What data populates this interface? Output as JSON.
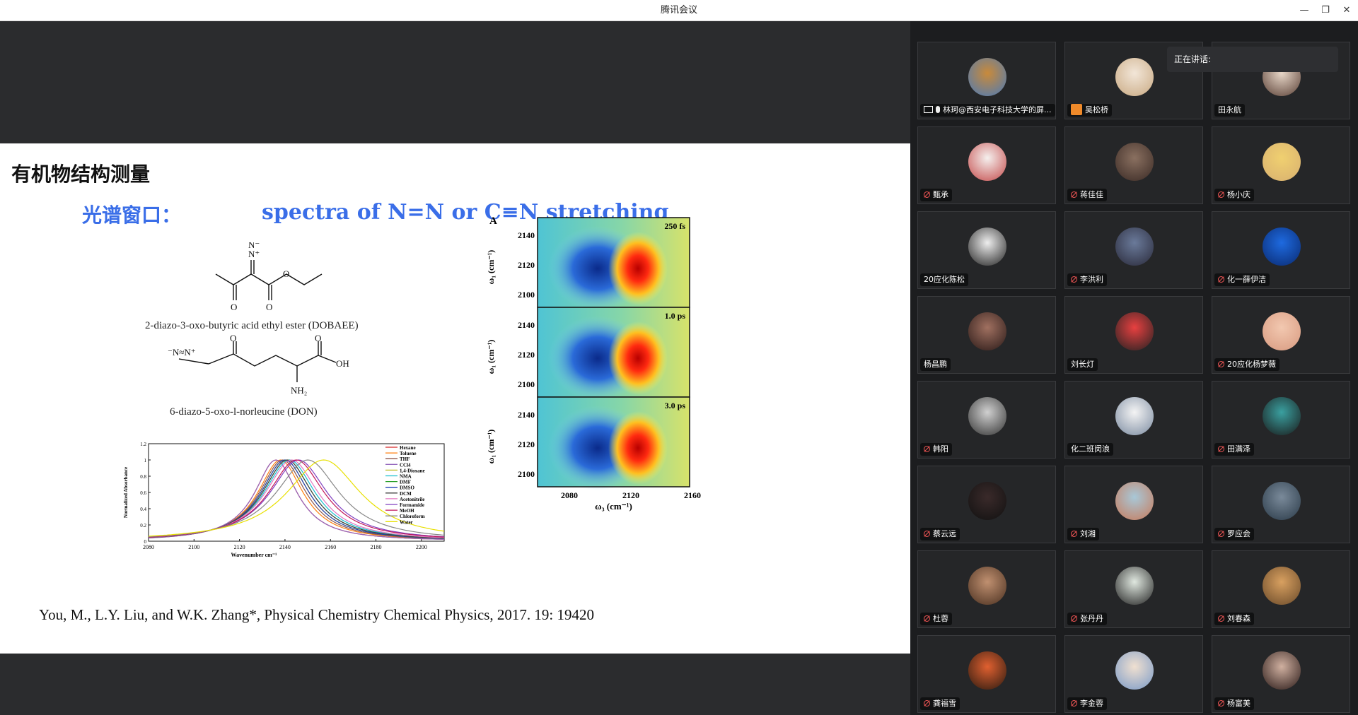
{
  "window": {
    "title": "腾讯会议",
    "minimize": "—",
    "restore": "❐",
    "close": "✕"
  },
  "slide": {
    "title": "有机物结构测量",
    "subtitle_cn": "光谱窗口：",
    "subtitle_en": "spectra of N=N or C≡N stretching",
    "molecule1_caption": "2-diazo-3-oxo-butyric acid ethyl ester (DOBAEE)",
    "molecule2_caption": "6-diazo-5-oxo-l-norleucine (DON)",
    "citation": "You, M., L.Y. Liu, and W.K. Zhang*, Physical Chemistry Chemical Physics, 2017. 19: 19420",
    "spectrum_chart": {
      "type": "line",
      "xlabel": "Wavenumber cm⁻¹",
      "ylabel": "Normalized Absorbance",
      "x_ticks": [
        "2080",
        "2100",
        "2120",
        "2140",
        "2160",
        "2180",
        "2200"
      ],
      "y_ticks": [
        "0",
        "0.2",
        "0.4",
        "0.6",
        "0.8",
        "1",
        "1.2"
      ],
      "legend": [
        "Hexane",
        "Toluene",
        "THF",
        "CCl4",
        "1,4-Dioxane",
        "NMA",
        "DMF",
        "DMSO",
        "DCM",
        "Acetonitrile",
        "Formamide",
        "MeOH",
        "Chloroform",
        "Water"
      ]
    },
    "contour_chart": {
      "type": "heatmap",
      "panel_letter": "A",
      "panels": [
        "250 fs",
        "1.0 ps",
        "3.0 ps"
      ],
      "ylabel": "ω₁ (cm⁻¹)",
      "xlabel": "ω₃ (cm⁻¹)",
      "y_ticks": [
        "2140",
        "2120",
        "2100"
      ],
      "x_ticks": [
        "2080",
        "2120",
        "2160"
      ]
    }
  },
  "chart_data": [
    {
      "type": "line",
      "title": "",
      "xlabel": "Wavenumber cm⁻¹",
      "ylabel": "Normalized Absorbance",
      "xlim": [
        2080,
        2210
      ],
      "ylim": [
        0,
        1.2
      ],
      "series": [
        {
          "name": "Hexane",
          "peak": 2136,
          "color": "#d62728"
        },
        {
          "name": "Toluene",
          "peak": 2138,
          "color": "#ff7f0e"
        },
        {
          "name": "THF",
          "peak": 2139,
          "color": "#8c564b"
        },
        {
          "name": "CCl4",
          "peak": 2136,
          "color": "#9467bd"
        },
        {
          "name": "1,4-Dioxane",
          "peak": 2140,
          "color": "#bcbd22"
        },
        {
          "name": "NMA",
          "peak": 2142,
          "color": "#17becf"
        },
        {
          "name": "DMF",
          "peak": 2141,
          "color": "#2ca02c"
        },
        {
          "name": "DMSO",
          "peak": 2140,
          "color": "#1f3fb4"
        },
        {
          "name": "DCM",
          "peak": 2141,
          "color": "#444444"
        },
        {
          "name": "Acetonitrile",
          "peak": 2143,
          "color": "#e377c2"
        },
        {
          "name": "Formamide",
          "peak": 2146,
          "color": "#7f3fbf"
        },
        {
          "name": "MeOH",
          "peak": 2145,
          "color": "#c2185b"
        },
        {
          "name": "Chloroform",
          "peak": 2150,
          "color": "#888888"
        },
        {
          "name": "Water",
          "peak": 2157,
          "color": "#e8e000"
        }
      ]
    },
    {
      "type": "heatmap",
      "panels": [
        "250 fs",
        "1.0 ps",
        "3.0 ps"
      ],
      "xlabel": "ω₃ (cm⁻¹)",
      "ylabel": "ω₁ (cm⁻¹)",
      "xlim": [
        2060,
        2165
      ],
      "ylim": [
        2090,
        2150
      ]
    }
  ],
  "speaking": {
    "label": "正在讲话:"
  },
  "participants": [
    {
      "name": "林珂@西安电子科技大学的屏...",
      "status": "sharing",
      "av1": "#c98a3a",
      "av2": "#4a7ab8"
    },
    {
      "name": "吴松桥",
      "status": "host",
      "av1": "#f2e6d8",
      "av2": "#c9a982"
    },
    {
      "name": "田永航",
      "status": "none",
      "av1": "#e8d7c8",
      "av2": "#5a4036"
    },
    {
      "name": "甄承",
      "status": "muted",
      "av1": "#f5f0ee",
      "av2": "#c44a4a"
    },
    {
      "name": "蒋佳佳",
      "status": "muted",
      "av1": "#8a7060",
      "av2": "#3a2a25"
    },
    {
      "name": "杨小庆",
      "status": "muted",
      "av1": "#f0d070",
      "av2": "#d8b070"
    },
    {
      "name": "20应化陈松",
      "status": "none",
      "av1": "#eeeeee",
      "av2": "#222222"
    },
    {
      "name": "李洪利",
      "status": "muted",
      "av1": "#6a7a9a",
      "av2": "#2a2a3a"
    },
    {
      "name": "化一薛伊洁",
      "status": "muted",
      "av1": "#1e6ae0",
      "av2": "#0a2a70"
    },
    {
      "name": "杨昌鹏",
      "status": "none",
      "av1": "#a07060",
      "av2": "#2a1a18"
    },
    {
      "name": "刘长灯",
      "status": "none",
      "av1": "#e84040",
      "av2": "#222222"
    },
    {
      "name": "20应化杨梦薇",
      "status": "muted",
      "av1": "#f2c8b0",
      "av2": "#d89a80"
    },
    {
      "name": "韩阳",
      "status": "muted",
      "av1": "#d0d0d0",
      "av2": "#333333"
    },
    {
      "name": "化二班闵浪",
      "status": "none",
      "av1": "#f4f4f4",
      "av2": "#7a8aa0"
    },
    {
      "name": "田满泽",
      "status": "muted",
      "av1": "#3aa0a0",
      "av2": "#1a1a1a"
    },
    {
      "name": "蔡云远",
      "status": "muted",
      "av1": "#3a2a2a",
      "av2": "#111111"
    },
    {
      "name": "刘湘",
      "status": "muted",
      "av1": "#a8c8d8",
      "av2": "#c87a5a"
    },
    {
      "name": "罗应会",
      "status": "muted",
      "av1": "#7a8a9a",
      "av2": "#2a3a48"
    },
    {
      "name": "杜蓉",
      "status": "muted",
      "av1": "#c09070",
      "av2": "#4a3020"
    },
    {
      "name": "张丹丹",
      "status": "muted",
      "av1": "#e0e8e0",
      "av2": "#222222"
    },
    {
      "name": "刘春森",
      "status": "muted",
      "av1": "#d8a060",
      "av2": "#6a4a2a"
    },
    {
      "name": "龚福雪",
      "status": "muted",
      "av1": "#e06030",
      "av2": "#2a1a10"
    },
    {
      "name": "李金蓉",
      "status": "muted",
      "av1": "#f0e0d0",
      "av2": "#7a9ac8"
    },
    {
      "name": "杨富美",
      "status": "muted",
      "av1": "#d0b0a0",
      "av2": "#2a1a18"
    }
  ]
}
